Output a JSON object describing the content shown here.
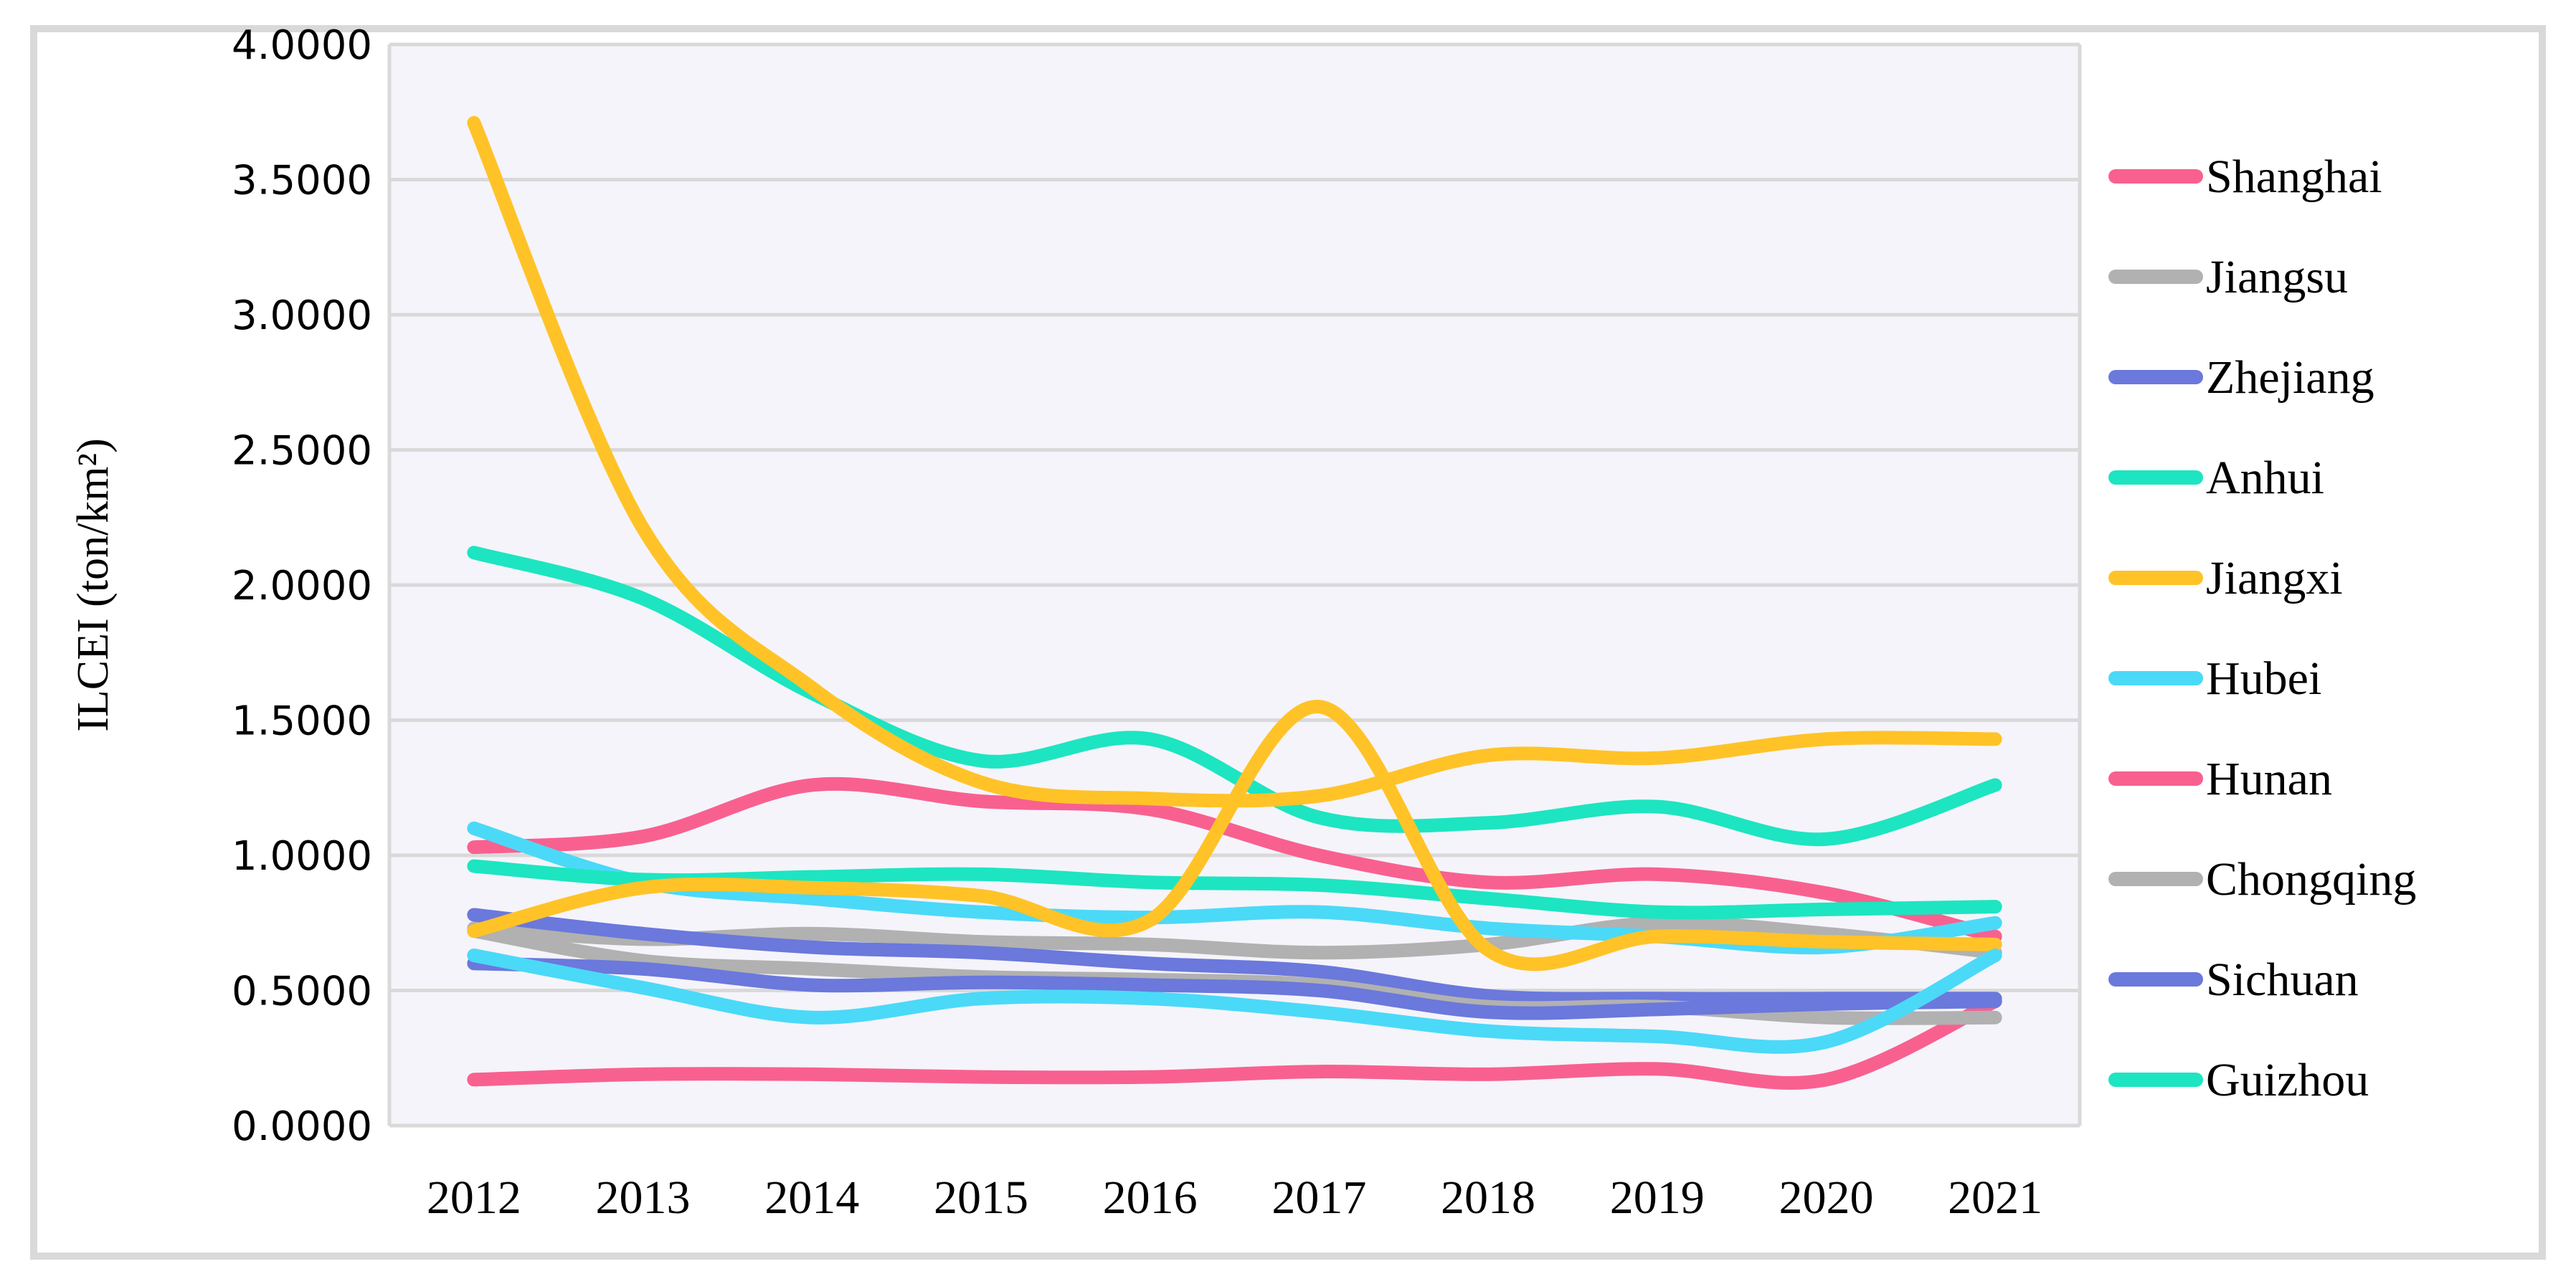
{
  "chart_data": {
    "type": "line",
    "title": "",
    "xlabel": "",
    "ylabel": "ILCEI (ton/km²)",
    "ylim": [
      0,
      4
    ],
    "ytick_step": 0.5,
    "ytick_labels": [
      "4.0000",
      "3.5000",
      "3.0000",
      "2.5000",
      "2.0000",
      "1.5000",
      "1.0000",
      "0.5000",
      "0.0000"
    ],
    "grid": true,
    "legend_position": "right",
    "line_style": "smooth",
    "categories": [
      "2012",
      "2013",
      "2014",
      "2015",
      "2016",
      "2017",
      "2018",
      "2019",
      "2020",
      "2021"
    ],
    "series": [
      {
        "name": "Shanghai",
        "color": "#F8618F",
        "in_legend": true,
        "values": [
          1.03,
          1.07,
          1.26,
          1.2,
          1.17,
          1.0,
          0.9,
          0.93,
          0.86,
          0.7
        ]
      },
      {
        "name": "Jiangsu",
        "color": "#B1B1B1",
        "in_legend": true,
        "values": [
          0.73,
          0.69,
          0.71,
          0.68,
          0.67,
          0.64,
          0.67,
          0.75,
          0.71,
          0.64
        ]
      },
      {
        "name": "Zhejiang",
        "color": "#6B78DC",
        "in_legend": true,
        "values": [
          0.78,
          0.71,
          0.66,
          0.64,
          0.6,
          0.57,
          0.48,
          0.47,
          0.47,
          0.47
        ]
      },
      {
        "name": "Anhui",
        "color": "#1DE5C1",
        "in_legend": true,
        "values": [
          2.12,
          1.95,
          1.6,
          1.35,
          1.43,
          1.14,
          1.12,
          1.18,
          1.06,
          1.26
        ]
      },
      {
        "name": "Jiangxi",
        "color": "#FFC328",
        "in_legend": true,
        "values": [
          3.71,
          2.21,
          1.62,
          1.27,
          1.21,
          1.22,
          1.37,
          1.36,
          1.43,
          1.43
        ]
      },
      {
        "name": "Hubei",
        "color": "#4BD9F8",
        "in_legend": true,
        "values": [
          1.1,
          0.9,
          0.84,
          0.79,
          0.77,
          0.79,
          0.73,
          0.7,
          0.66,
          0.75
        ]
      },
      {
        "name": "Hunan",
        "color": "#F8618F",
        "in_legend": true,
        "values": [
          0.17,
          0.19,
          0.19,
          0.18,
          0.18,
          0.2,
          0.19,
          0.21,
          0.17,
          0.46
        ]
      },
      {
        "name": "Chongqing",
        "color": "#B1B1B1",
        "in_legend": true,
        "values": [
          0.72,
          0.61,
          0.58,
          0.55,
          0.54,
          0.52,
          0.44,
          0.44,
          0.4,
          0.4
        ]
      },
      {
        "name": "Sichuan",
        "color": "#6B78DC",
        "in_legend": true,
        "values": [
          0.6,
          0.58,
          0.52,
          0.53,
          0.52,
          0.5,
          0.42,
          0.43,
          0.45,
          0.46
        ]
      },
      {
        "name": "Guizhou",
        "color": "#1DE5C1",
        "in_legend": true,
        "values": [
          0.96,
          0.91,
          0.92,
          0.93,
          0.9,
          0.89,
          0.84,
          0.79,
          0.8,
          0.81
        ]
      },
      {
        "name": "",
        "color": "#FFC328",
        "in_legend": false,
        "values": [
          0.72,
          0.88,
          0.88,
          0.85,
          0.76,
          1.55,
          0.65,
          0.7,
          0.68,
          0.67
        ]
      },
      {
        "name": "",
        "color": "#4BD9F8",
        "in_legend": false,
        "values": [
          0.63,
          0.51,
          0.4,
          0.47,
          0.47,
          0.42,
          0.35,
          0.33,
          0.31,
          0.63
        ]
      }
    ]
  },
  "style": {
    "plot_bg": "#F5F4FA",
    "grid_color": "#D9D9D9",
    "border_color": "#D9D9D9",
    "line_width": 19,
    "legend_swatch_width": 112,
    "legend_swatch_thickness": 20
  }
}
